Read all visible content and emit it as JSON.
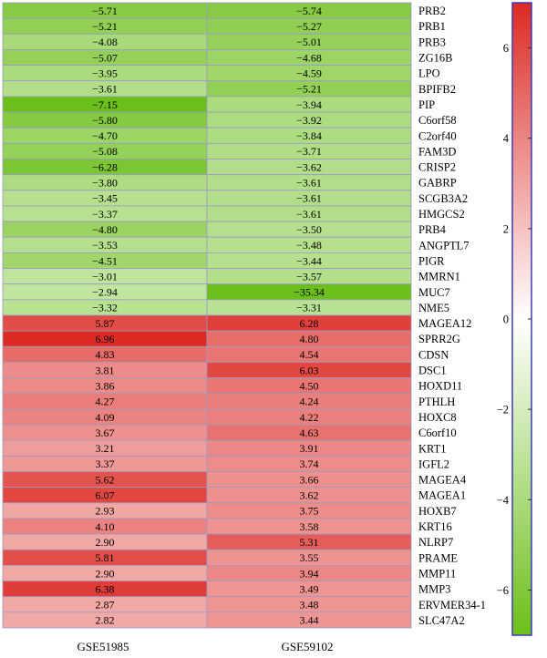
{
  "chart_data": {
    "type": "heatmap",
    "columns": [
      "GSE51985",
      "GSE59102"
    ],
    "rows": [
      {
        "gene": "PRB2",
        "values": [
          -5.71,
          -5.74
        ],
        "labels": [
          "−5.71",
          "−5.74"
        ]
      },
      {
        "gene": "PRB1",
        "values": [
          -5.21,
          -5.27
        ],
        "labels": [
          "−5.21",
          "−5.27"
        ]
      },
      {
        "gene": "PRB3",
        "values": [
          -4.08,
          -5.01
        ],
        "labels": [
          "−4.08",
          "−5.01"
        ]
      },
      {
        "gene": "ZG16B",
        "values": [
          -5.07,
          -4.68
        ],
        "labels": [
          "−5.07",
          "−4.68"
        ]
      },
      {
        "gene": "LPO",
        "values": [
          -3.95,
          -4.59
        ],
        "labels": [
          "−3.95",
          "−4.59"
        ]
      },
      {
        "gene": "BPIFB2",
        "values": [
          -3.61,
          -5.21
        ],
        "labels": [
          "−3.61",
          "−5.21"
        ]
      },
      {
        "gene": "PIP",
        "values": [
          -7.15,
          -3.94
        ],
        "labels": [
          "−7.15",
          "−3.94"
        ]
      },
      {
        "gene": "C6orf58",
        "values": [
          -5.8,
          -3.92
        ],
        "labels": [
          "−5.80",
          "−3.92"
        ]
      },
      {
        "gene": "C2orf40",
        "values": [
          -4.7,
          -3.84
        ],
        "labels": [
          "−4.70",
          "−3.84"
        ]
      },
      {
        "gene": "FAM3D",
        "values": [
          -5.08,
          -3.71
        ],
        "labels": [
          "−5.08",
          "−3.71"
        ]
      },
      {
        "gene": "CRISP2",
        "values": [
          -6.28,
          -3.62
        ],
        "labels": [
          "−6.28",
          "−3.62"
        ]
      },
      {
        "gene": "GABRP",
        "values": [
          -3.8,
          -3.61
        ],
        "labels": [
          "−3.80",
          "−3.61"
        ]
      },
      {
        "gene": "SCGB3A2",
        "values": [
          -3.45,
          -3.61
        ],
        "labels": [
          "−3.45",
          "−3.61"
        ]
      },
      {
        "gene": "HMGCS2",
        "values": [
          -3.37,
          -3.61
        ],
        "labels": [
          "−3.37",
          "−3.61"
        ]
      },
      {
        "gene": "PRB4",
        "values": [
          -4.8,
          -3.5
        ],
        "labels": [
          "−4.80",
          "−3.50"
        ]
      },
      {
        "gene": "ANGPTL7",
        "values": [
          -3.53,
          -3.48
        ],
        "labels": [
          "−3.53",
          "−3.48"
        ]
      },
      {
        "gene": "PIGR",
        "values": [
          -4.51,
          -3.44
        ],
        "labels": [
          "−4.51",
          "−3.44"
        ]
      },
      {
        "gene": "MMRN1",
        "values": [
          -3.01,
          -3.57
        ],
        "labels": [
          "−3.01",
          "−3.57"
        ]
      },
      {
        "gene": "MUC7",
        "values": [
          -2.94,
          -35.34
        ],
        "labels": [
          "−2.94",
          "−35.34"
        ]
      },
      {
        "gene": "NME5",
        "values": [
          -3.32,
          -3.31
        ],
        "labels": [
          "−3.32",
          "−3.31"
        ]
      },
      {
        "gene": "MAGEA12",
        "values": [
          5.87,
          6.28
        ],
        "labels": [
          "5.87",
          "6.28"
        ]
      },
      {
        "gene": "SPRR2G",
        "values": [
          6.96,
          4.8
        ],
        "labels": [
          "6.96",
          "4.80"
        ]
      },
      {
        "gene": "CDSN",
        "values": [
          4.83,
          4.54
        ],
        "labels": [
          "4.83",
          "4.54"
        ]
      },
      {
        "gene": "DSC1",
        "values": [
          3.81,
          6.03
        ],
        "labels": [
          "3.81",
          "6.03"
        ]
      },
      {
        "gene": "HOXD11",
        "values": [
          3.86,
          4.5
        ],
        "labels": [
          "3.86",
          "4.50"
        ]
      },
      {
        "gene": "PTHLH",
        "values": [
          4.27,
          4.24
        ],
        "labels": [
          "4.27",
          "4.24"
        ]
      },
      {
        "gene": "HOXC8",
        "values": [
          4.09,
          4.22
        ],
        "labels": [
          "4.09",
          "4.22"
        ]
      },
      {
        "gene": "C6orf10",
        "values": [
          3.67,
          4.63
        ],
        "labels": [
          "3.67",
          "4.63"
        ]
      },
      {
        "gene": "KRT1",
        "values": [
          3.21,
          3.91
        ],
        "labels": [
          "3.21",
          "3.91"
        ]
      },
      {
        "gene": "IGFL2",
        "values": [
          3.37,
          3.74
        ],
        "labels": [
          "3.37",
          "3.74"
        ]
      },
      {
        "gene": "MAGEA4",
        "values": [
          5.62,
          3.66
        ],
        "labels": [
          "5.62",
          "3.66"
        ]
      },
      {
        "gene": "MAGEA1",
        "values": [
          6.07,
          3.62
        ],
        "labels": [
          "6.07",
          "3.62"
        ]
      },
      {
        "gene": "HOXB7",
        "values": [
          2.93,
          3.75
        ],
        "labels": [
          "2.93",
          "3.75"
        ]
      },
      {
        "gene": "KRT16",
        "values": [
          4.1,
          3.58
        ],
        "labels": [
          "4.10",
          "3.58"
        ]
      },
      {
        "gene": "NLRP7",
        "values": [
          2.9,
          5.31
        ],
        "labels": [
          "2.90",
          "5.31"
        ]
      },
      {
        "gene": "PRAME",
        "values": [
          5.81,
          3.55
        ],
        "labels": [
          "5.81",
          "3.55"
        ]
      },
      {
        "gene": "MMP11",
        "values": [
          2.9,
          3.94
        ],
        "labels": [
          "2.90",
          "3.94"
        ]
      },
      {
        "gene": "MMP3",
        "values": [
          6.38,
          3.49
        ],
        "labels": [
          "6.38",
          "3.49"
        ]
      },
      {
        "gene": "ERVMER34-1",
        "values": [
          2.87,
          3.48
        ],
        "labels": [
          "2.87",
          "3.48"
        ]
      },
      {
        "gene": "SLC47A2",
        "values": [
          2.82,
          3.44
        ],
        "labels": [
          "2.82",
          "3.44"
        ]
      }
    ],
    "color_scale": {
      "min": -7,
      "max": 7,
      "low_color": "#6cbf1a",
      "mid_color": "#ffffff",
      "high_color": "#dc2a24",
      "ticks": [
        6,
        4,
        2,
        0,
        -2,
        -4,
        -6
      ],
      "tick_labels": [
        "6",
        "4",
        "2",
        "0",
        "−2",
        "−4",
        "−6"
      ]
    },
    "title": "",
    "xlabel": "",
    "ylabel": ""
  }
}
